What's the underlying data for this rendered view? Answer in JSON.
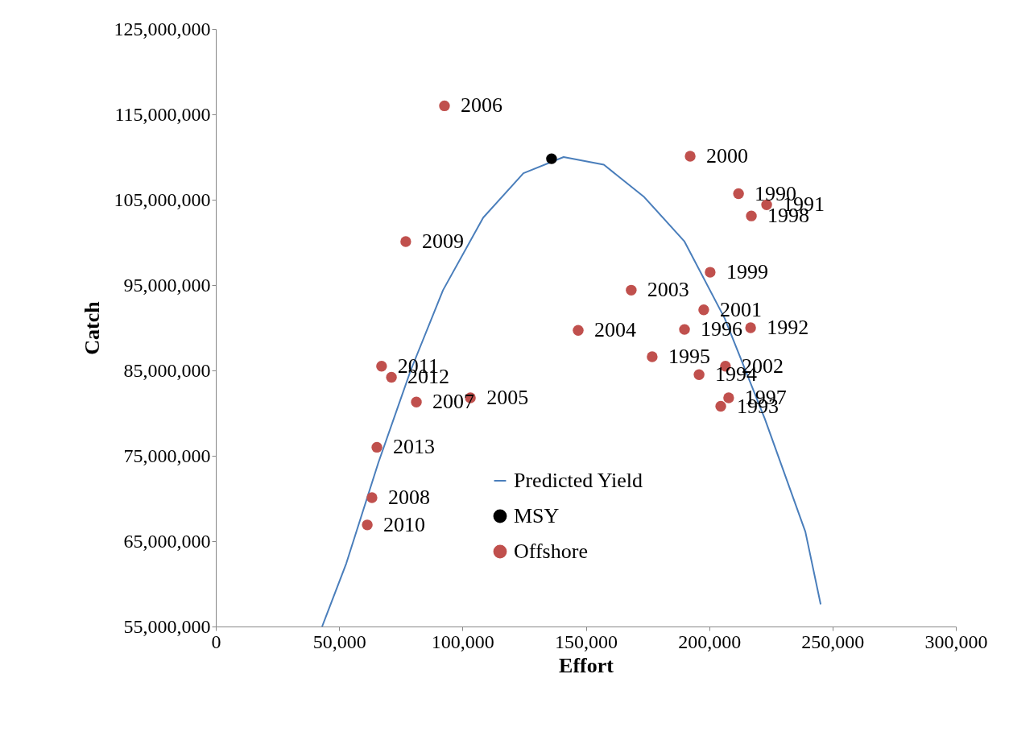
{
  "chart_data": {
    "type": "scatter",
    "xlabel": "Effort",
    "ylabel": "Catch",
    "xlim": [
      0,
      300000
    ],
    "ylim": [
      55000000,
      125000000
    ],
    "xticks": [
      0,
      {
        "value": 50000,
        "label": "50,000"
      },
      {
        "value": 100000,
        "label": "100,000"
      },
      {
        "value": 150000,
        "label": "150,000"
      },
      {
        "value": 200000,
        "label": "200,000"
      },
      {
        "value": 250000,
        "label": "250,000"
      },
      {
        "value": 300000,
        "label": "300,000"
      }
    ],
    "yticks": [
      {
        "value": 55000000,
        "label": "55,000,000"
      },
      {
        "value": 65000000,
        "label": "65,000,000"
      },
      {
        "value": 75000000,
        "label": "75,000,000"
      },
      {
        "value": 85000000,
        "label": "85,000,000"
      },
      {
        "value": 95000000,
        "label": "95,000,000"
      },
      {
        "value": 105000000,
        "label": "105,000,000"
      },
      {
        "value": 115000000,
        "label": "115,000,000"
      },
      {
        "value": 125000000,
        "label": "125,000,000"
      }
    ],
    "grid": false,
    "legend": "bottom",
    "marker": "circle",
    "series": [
      {
        "name": "Predicted Yield",
        "type": "line",
        "marker": "none",
        "color": "#4a7ebb",
        "x": [
          43100,
          52900,
          65900,
          79000,
          92100,
          108400,
          124700,
          141000,
          157300,
          173700,
          190000,
          206300,
          222600,
          239000,
          245200
        ],
        "values": [
          55000000,
          62400000,
          74200000,
          85000000,
          94400000,
          102900000,
          108100000,
          110000000,
          109100000,
          105300000,
          100100000,
          91100000,
          79300000,
          66100000,
          57600000
        ]
      },
      {
        "name": "MSY",
        "color": "#000000",
        "x": [
          136100
        ],
        "values": [
          109800000
        ]
      },
      {
        "name": "Offshore",
        "color": "#c0504d",
        "x": [
          211900,
          223300,
          216800,
          204700,
          195900,
          176900,
          190000,
          207900,
          217100,
          200400,
          192300,
          197800,
          206600,
          168400,
          146900,
          103200,
          92700,
          81300,
          63300,
          77000,
          61400,
          67200,
          71200,
          65300
        ],
        "values": [
          105700000,
          104400000,
          90000000,
          80800000,
          84500000,
          86600000,
          89800000,
          81800000,
          103100000,
          96500000,
          110100000,
          92100000,
          85500000,
          94400000,
          89700000,
          81800000,
          116000000,
          81300000,
          70100000,
          100100000,
          66900000,
          85500000,
          84200000,
          76000000
        ]
      }
    ],
    "annotations": [
      {
        "text": "1990",
        "x": 211900,
        "y": 105700000
      },
      {
        "text": "1991",
        "x": 223300,
        "y": 104400000
      },
      {
        "text": "1992",
        "x": 216800,
        "y": 90000000
      },
      {
        "text": "1993",
        "x": 204700,
        "y": 80800000
      },
      {
        "text": "1994",
        "x": 195900,
        "y": 84500000
      },
      {
        "text": "1995",
        "x": 176900,
        "y": 86600000
      },
      {
        "text": "1996",
        "x": 190000,
        "y": 89800000
      },
      {
        "text": "1997",
        "x": 207900,
        "y": 81800000
      },
      {
        "text": "1998",
        "x": 217100,
        "y": 103100000
      },
      {
        "text": "1999",
        "x": 200400,
        "y": 96500000
      },
      {
        "text": "2000",
        "x": 192300,
        "y": 110100000
      },
      {
        "text": "2001",
        "x": 197800,
        "y": 92100000
      },
      {
        "text": "2002",
        "x": 206600,
        "y": 85500000
      },
      {
        "text": "2003",
        "x": 168400,
        "y": 94400000
      },
      {
        "text": "2004",
        "x": 146900,
        "y": 89700000
      },
      {
        "text": "2005",
        "x": 103200,
        "y": 81800000
      },
      {
        "text": "2006",
        "x": 92700,
        "y": 116000000
      },
      {
        "text": "2007",
        "x": 81300,
        "y": 81300000
      },
      {
        "text": "2008",
        "x": 63300,
        "y": 70100000
      },
      {
        "text": "2009",
        "x": 77000,
        "y": 100100000
      },
      {
        "text": "2010",
        "x": 61400,
        "y": 66900000
      },
      {
        "text": "2011",
        "x": 67200,
        "y": 85500000
      },
      {
        "text": "2012",
        "x": 71200,
        "y": 84200000
      },
      {
        "text": "2013",
        "x": 65300,
        "y": 76000000
      }
    ]
  }
}
